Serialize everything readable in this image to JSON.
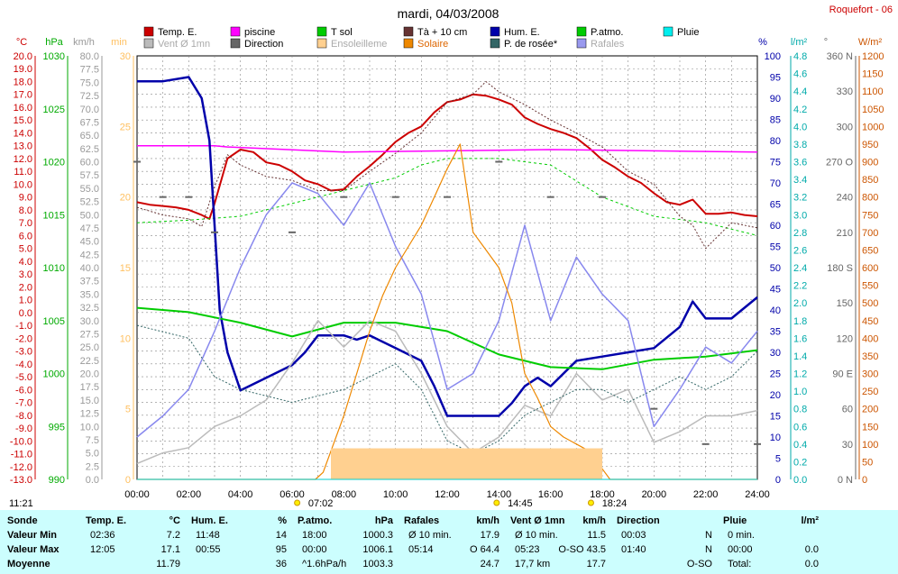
{
  "title": "mardi, 04/03/2008",
  "station": "Roquefort - 06",
  "legend": [
    {
      "label": "Temp. E.",
      "color": "#cc0000"
    },
    {
      "label": "piscine",
      "color": "#ff00ff"
    },
    {
      "label": "T sol",
      "color": "#00cc00"
    },
    {
      "label": "Tà + 10 cm",
      "color": "#663333"
    },
    {
      "label": "Hum. E.",
      "color": "#0000aa"
    },
    {
      "label": "P.atmo.",
      "color": "#00cc00"
    },
    {
      "label": "Pluie",
      "color": "#00eeee"
    },
    {
      "label": "Vent Ø 1mn",
      "color": "#bbbbbb"
    },
    {
      "label": "Direction",
      "color": "#666666"
    },
    {
      "label": "Ensoleilleme",
      "color": "#ffd090"
    },
    {
      "label": "Solaire",
      "color": "#ee8800"
    },
    {
      "label": "P. de rosée*",
      "color": "#336666"
    },
    {
      "label": "Rafales",
      "color": "#9999ee"
    }
  ],
  "colors": {
    "temp": "#cc0000",
    "piscine": "#ff00ff",
    "tsol": "#00cc00",
    "ta10": "#663333",
    "hum": "#0000aa",
    "patmo": "#00cc00",
    "pluie": "#00cccc",
    "vent": "#bbbbbb",
    "direction": "#666666",
    "ensoleillement": "#ffd090",
    "solaire": "#ee8800",
    "rosee": "#336666",
    "rafales": "#8888ee",
    "grid": "#888888",
    "stats_bg": "#ccfefe"
  },
  "axes": {
    "temp": {
      "unit": "°C",
      "color": "#cc0000",
      "ticks": [
        "20.0",
        "19.0",
        "18.0",
        "17.0",
        "16.0",
        "15.0",
        "14.0",
        "13.0",
        "12.0",
        "11.0",
        "10.0",
        "9.0",
        "8.0",
        "7.0",
        "6.0",
        "5.0",
        "4.0",
        "3.0",
        "2.0",
        "1.0",
        "0.0",
        "-1.0",
        "-2.0",
        "-3.0",
        "-4.0",
        "-5.0",
        "-6.0",
        "-7.0",
        "-8.0",
        "-9.0",
        "-10.0",
        "-11.0",
        "-12.0",
        "-13.0"
      ]
    },
    "pressure": {
      "unit": "hPa",
      "color": "#00aa00",
      "ticks": [
        "1030",
        "1025",
        "1020",
        "1015",
        "1010",
        "1005",
        "1000",
        "995",
        "990"
      ]
    },
    "wind": {
      "unit": "km/h",
      "color": "#999999",
      "ticks": [
        "80.0",
        "77.5",
        "75.0",
        "72.5",
        "70.0",
        "67.5",
        "65.0",
        "62.5",
        "60.0",
        "57.5",
        "55.0",
        "52.5",
        "50.0",
        "47.5",
        "45.0",
        "42.5",
        "40.0",
        "37.5",
        "35.0",
        "32.5",
        "30.0",
        "27.5",
        "25.0",
        "22.5",
        "20.0",
        "17.5",
        "15.0",
        "12.5",
        "10.0",
        "7.5",
        "5.0",
        "2.5",
        "0.0"
      ]
    },
    "sun": {
      "unit": "min",
      "color": "#ffc060",
      "ticks": [
        "30",
        "25",
        "20",
        "15",
        "10",
        "5",
        "0"
      ]
    },
    "hum": {
      "unit": "%",
      "color": "#0000aa",
      "ticks": [
        "100",
        "95",
        "90",
        "85",
        "80",
        "75",
        "70",
        "65",
        "60",
        "55",
        "50",
        "45",
        "40",
        "35",
        "30",
        "25",
        "20",
        "15",
        "10",
        "5",
        "0"
      ]
    },
    "rain": {
      "unit": "l/m²",
      "color": "#00aaaa",
      "ticks": [
        "4.8",
        "4.6",
        "4.4",
        "4.2",
        "4.0",
        "3.8",
        "3.6",
        "3.4",
        "3.2",
        "3.0",
        "2.8",
        "2.6",
        "2.4",
        "2.2",
        "2.0",
        "1.8",
        "1.6",
        "1.4",
        "1.2",
        "1.0",
        "0.8",
        "0.6",
        "0.4",
        "0.2",
        "0.0"
      ]
    },
    "dir": {
      "unit": "°",
      "color": "#666666",
      "ticks": [
        "360 N",
        "330",
        "300",
        "270 O",
        "240",
        "210",
        "180 S",
        "150",
        "120",
        "90 E",
        "60",
        "30",
        "0 N"
      ]
    },
    "solar": {
      "unit": "W/m²",
      "color": "#cc5500",
      "ticks": [
        "1200",
        "1150",
        "1100",
        "1050",
        "1000",
        "950",
        "900",
        "850",
        "800",
        "750",
        "700",
        "650",
        "600",
        "550",
        "500",
        "450",
        "400",
        "350",
        "300",
        "250",
        "200",
        "150",
        "100",
        "50",
        "0"
      ]
    },
    "time": {
      "ticks": [
        "00:00",
        "02:00",
        "04:00",
        "06:00",
        "08:00",
        "10:00",
        "12:00",
        "14:00",
        "16:00",
        "18:00",
        "20:00",
        "22:00",
        "24:00"
      ]
    }
  },
  "markers": {
    "left": "11:21",
    "sunrise": "07:02",
    "mid": "14:45",
    "sunset": "18:24"
  },
  "chart_data": {
    "type": "line",
    "title": "mardi, 04/03/2008",
    "xlabel": "",
    "ylabel": "°C",
    "x_unit": "hours",
    "xlim": [
      0,
      24
    ],
    "ylim_temp": [
      -13,
      20
    ],
    "ylim_pressure": [
      990,
      1030
    ],
    "ylim_wind": [
      0,
      80
    ],
    "ylim_hum": [
      0,
      100
    ],
    "ylim_solar": [
      0,
      1200
    ],
    "ylim_direction": [
      0,
      360
    ],
    "grid": true,
    "legend_position": "top",
    "series": [
      {
        "name": "Temp. E.",
        "unit": "°C",
        "x": [
          0,
          0.5,
          1,
          1.5,
          2,
          2.5,
          2.8,
          3,
          3.5,
          4,
          4.5,
          5,
          5.5,
          6,
          6.5,
          7,
          7.5,
          8,
          8.5,
          9,
          9.5,
          10,
          10.5,
          11,
          11.5,
          12,
          12.5,
          13,
          13.5,
          14,
          14.5,
          15,
          15.5,
          16,
          16.5,
          17,
          17.5,
          18,
          18.5,
          19,
          19.5,
          20,
          20.5,
          21,
          21.5,
          22,
          22.5,
          23,
          23.5,
          24
        ],
        "y": [
          8.6,
          8.4,
          8.3,
          8.2,
          8.0,
          7.6,
          7.3,
          8.5,
          12.0,
          12.7,
          12.5,
          11.7,
          11.5,
          11.0,
          10.3,
          10.0,
          9.5,
          9.6,
          10.6,
          11.4,
          12.3,
          13.3,
          14.0,
          14.5,
          15.6,
          16.4,
          16.6,
          17.0,
          16.9,
          16.6,
          16.2,
          15.2,
          14.7,
          14.3,
          14.0,
          13.6,
          12.8,
          11.9,
          11.3,
          10.6,
          10.1,
          9.3,
          8.6,
          8.4,
          8.8,
          7.7,
          7.7,
          7.8,
          7.6,
          7.5
        ]
      },
      {
        "name": "piscine",
        "unit": "°C",
        "x": [
          0,
          3,
          3.5,
          8,
          12,
          16,
          24
        ],
        "y": [
          13.0,
          13.0,
          12.9,
          12.5,
          12.6,
          12.7,
          12.5
        ]
      },
      {
        "name": "T sol",
        "unit": "°C",
        "x": [
          0,
          2,
          4,
          6,
          8,
          10,
          11,
          12,
          14,
          16,
          18,
          20,
          22,
          24
        ],
        "y": [
          7.0,
          7.2,
          7.5,
          8.5,
          9.5,
          10.5,
          11.5,
          12.0,
          12.0,
          11.5,
          9.0,
          7.5,
          7.0,
          6.0
        ]
      },
      {
        "name": "Tà + 10 cm",
        "unit": "°C",
        "x": [
          0,
          1,
          2,
          2.5,
          3,
          3.5,
          4,
          5,
          6,
          7,
          8,
          9,
          10,
          11,
          12,
          13,
          13.5,
          14,
          15,
          16,
          17,
          18,
          19,
          20,
          21,
          21.5,
          22,
          23,
          24
        ],
        "y": [
          8.2,
          7.6,
          7.3,
          6.7,
          9.8,
          12.3,
          11.5,
          10.6,
          10.3,
          9.5,
          9.5,
          11.0,
          12.4,
          14.0,
          16.4,
          17.0,
          18.0,
          17.2,
          16.2,
          15.0,
          14.0,
          12.9,
          11.0,
          10.0,
          7.5,
          6.8,
          5.0,
          7.0,
          6.6
        ]
      },
      {
        "name": "Hum. E.",
        "unit": "%",
        "x": [
          0,
          1,
          2,
          2.5,
          2.8,
          3,
          3.2,
          3.5,
          4,
          5,
          6,
          6.5,
          7,
          8,
          8.5,
          9,
          10,
          11,
          11.5,
          12,
          13,
          14,
          14.5,
          15,
          15.5,
          16,
          17,
          18,
          19,
          20,
          21,
          21.5,
          22,
          23,
          24
        ],
        "y": [
          94,
          94,
          95,
          90,
          80,
          60,
          40,
          30,
          21,
          24,
          27,
          30,
          34,
          34,
          33,
          34,
          31,
          28,
          22,
          15,
          15,
          15,
          18,
          22,
          24,
          22,
          28,
          29,
          30,
          31,
          36,
          42,
          38,
          38,
          43
        ]
      },
      {
        "name": "P.atmo.",
        "unit": "hPa",
        "x": [
          0,
          2,
          4,
          6,
          8,
          10,
          12,
          14,
          16,
          18,
          20,
          22,
          24
        ],
        "y": [
          1006.2,
          1005.8,
          1004.8,
          1003.5,
          1004.8,
          1004.8,
          1004.0,
          1001.8,
          1000.6,
          1000.4,
          1001.3,
          1001.6,
          1002.2
        ]
      },
      {
        "name": "Vent Ø 1mn",
        "unit": "km/h",
        "x": [
          0,
          1,
          2,
          3,
          4,
          5,
          6,
          7,
          8,
          9,
          10,
          11,
          12,
          13,
          14,
          15,
          16,
          17,
          18,
          19,
          20,
          21,
          22,
          23,
          24
        ],
        "y": [
          3,
          5,
          6,
          10,
          12,
          15,
          22,
          30,
          25,
          30,
          28,
          20,
          10,
          5,
          8,
          14,
          12,
          20,
          15,
          17,
          7,
          9,
          12,
          12,
          13
        ]
      },
      {
        "name": "Rafales",
        "unit": "km/h",
        "x": [
          0,
          1,
          2,
          3,
          4,
          5,
          6,
          7,
          8,
          9,
          10,
          11,
          12,
          13,
          14,
          15,
          16,
          17,
          18,
          19,
          20,
          21,
          22,
          23,
          24
        ],
        "y": [
          8,
          12,
          17,
          28,
          40,
          50,
          56,
          54,
          48,
          56,
          44,
          35,
          17,
          20,
          30,
          48,
          30,
          42,
          35,
          30,
          10,
          17,
          25,
          22,
          28
        ]
      },
      {
        "name": "Solaire",
        "unit": "W/m²",
        "x": [
          0,
          6.9,
          7.2,
          7.5,
          8,
          8.5,
          9,
          9.5,
          10,
          10.5,
          11,
          11.5,
          12,
          12.5,
          13,
          13.5,
          14,
          14.5,
          15,
          15.5,
          16,
          16.5,
          17,
          17.5,
          18,
          18.3,
          24
        ],
        "y": [
          0,
          0,
          20,
          80,
          180,
          300,
          420,
          520,
          600,
          660,
          720,
          800,
          880,
          950,
          700,
          650,
          600,
          500,
          300,
          230,
          150,
          120,
          100,
          80,
          30,
          0,
          0
        ]
      },
      {
        "name": "P. de rosée*",
        "unit": "°C",
        "x": [
          0,
          2,
          3,
          4,
          6,
          8,
          9,
          10,
          11,
          12,
          13,
          14,
          15,
          16,
          17,
          18,
          19,
          20,
          21,
          22,
          23,
          24
        ],
        "y": [
          -1,
          -2,
          -5,
          -6,
          -7,
          -6,
          -5,
          -4,
          -6,
          -10,
          -11,
          -10,
          -8,
          -7,
          -6,
          -6,
          -7,
          -6,
          -5,
          -6,
          -5,
          -3
        ]
      },
      {
        "name": "Ensoleilleme",
        "unit": "min",
        "x": [
          7.5,
          18.0
        ],
        "y": [
          2.2,
          2.2
        ]
      },
      {
        "name": "Direction",
        "unit": "°",
        "x": [
          0,
          1,
          2,
          3,
          6,
          8,
          10,
          12,
          14,
          16,
          18,
          20,
          22,
          24
        ],
        "y": [
          270,
          240,
          240,
          210,
          210,
          240,
          240,
          240,
          270,
          240,
          240,
          60,
          30,
          30
        ]
      },
      {
        "name": "Pluie",
        "unit": "l/m²",
        "x": [
          0,
          24
        ],
        "y": [
          0,
          0
        ]
      }
    ]
  },
  "stats": {
    "headers": [
      {
        "label": "Sonde",
        "unit": ""
      },
      {
        "label": "Temp. E.",
        "unit": "°C"
      },
      {
        "label": "Hum. E.",
        "unit": "%"
      },
      {
        "label": "P.atmo.",
        "unit": "hPa"
      },
      {
        "label": "Rafales",
        "unit": "km/h"
      },
      {
        "label": "Vent Ø 1mn",
        "unit": "km/h"
      },
      {
        "label": "Direction",
        "unit": ""
      },
      {
        "label": "Pluie",
        "unit": "l/m²"
      }
    ],
    "rows": [
      {
        "label": "Valeur Min",
        "cells": [
          [
            "02:36",
            "7.2"
          ],
          [
            "11:48",
            "14"
          ],
          [
            "18:00",
            "1000.3"
          ],
          [
            "Ø 10 min.",
            "17.9"
          ],
          [
            "Ø 10 min.",
            "11.5"
          ],
          [
            "00:03",
            "N"
          ],
          [
            "0 min.",
            ""
          ]
        ]
      },
      {
        "label": "Valeur Max",
        "cells": [
          [
            "12:05",
            "17.1"
          ],
          [
            "00:55",
            "95"
          ],
          [
            "00:00",
            "1006.1"
          ],
          [
            "05:14",
            "O 64.4"
          ],
          [
            "05:23",
            "O-SO 43.5"
          ],
          [
            "01:40",
            "N"
          ],
          [
            "00:00",
            "0.0"
          ]
        ]
      },
      {
        "label": "Moyenne",
        "cells": [
          [
            "",
            "11.79"
          ],
          [
            "",
            "36"
          ],
          [
            "^1.6hPa/h",
            "1003.3"
          ],
          [
            "",
            "24.7"
          ],
          [
            "17,7 km",
            "17.7"
          ],
          [
            "",
            "O-SO"
          ],
          [
            "Total:",
            "0.0"
          ]
        ]
      }
    ]
  }
}
